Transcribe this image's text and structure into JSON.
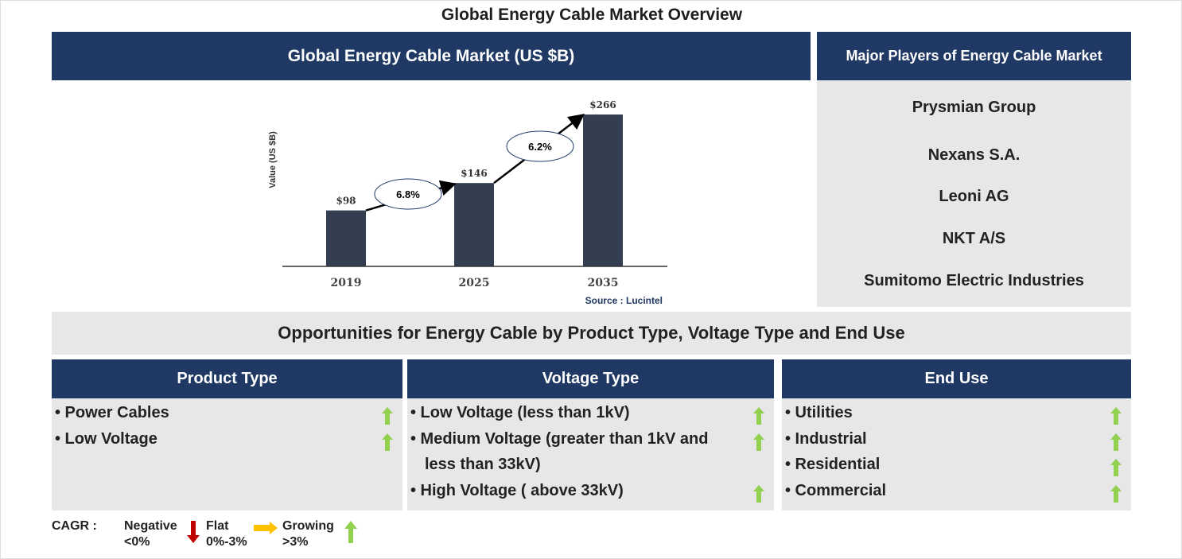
{
  "title": "Global Energy Cable Market Overview",
  "market_panel": {
    "title": "Global Energy Cable Market (US $B)",
    "source": "Source : Lucintel"
  },
  "chart_data": {
    "type": "bar",
    "categories": [
      "2019",
      "2025",
      "2035"
    ],
    "values": [
      98,
      146,
      266
    ],
    "data_labels": [
      "$98",
      "$146",
      "$266"
    ],
    "ylabel": "Value (US $B)",
    "cagr_annotations": [
      {
        "from": "2019",
        "to": "2025",
        "label": "6.8%"
      },
      {
        "from": "2025",
        "to": "2035",
        "label": "6.2%"
      }
    ],
    "bar_color": "#333f50",
    "grid": false
  },
  "players": {
    "title": "Major Players of Energy Cable Market",
    "items": [
      "Prysmian Group",
      "Nexans S.A.",
      "Leoni AG",
      "NKT A/S",
      "Sumitomo Electric Industries"
    ]
  },
  "opportunities": {
    "title": "Opportunities for Energy Cable by Product Type, Voltage Type and End Use"
  },
  "segments": [
    {
      "title": "Product Type",
      "items": [
        "• Power Cables",
        "• Low Voltage"
      ],
      "trend": [
        "growing",
        "growing"
      ]
    },
    {
      "title": "Voltage Type",
      "items": [
        "• Low Voltage (less than 1kV)",
        "• Medium Voltage (greater than 1kV and",
        "less than 33kV)",
        "• High Voltage ( above 33kV)"
      ],
      "trend": [
        "growing",
        "growing",
        "",
        "growing"
      ]
    },
    {
      "title": "End Use",
      "items": [
        "• Utilities",
        "• Industrial",
        "• Residential",
        "• Commercial"
      ],
      "trend": [
        "growing",
        "growing",
        "growing",
        "growing"
      ]
    }
  ],
  "legend": {
    "label": "CAGR  :",
    "negative": "Negative",
    "negative_range": "<0%",
    "flat": "Flat",
    "flat_range": "0%-3%",
    "growing": "Growing",
    "growing_range": ">3%"
  },
  "colors": {
    "navy": "#1f3864",
    "grey": "#e7e7e7",
    "up": "#92d050",
    "down": "#c00000",
    "flat": "#ffc000"
  }
}
